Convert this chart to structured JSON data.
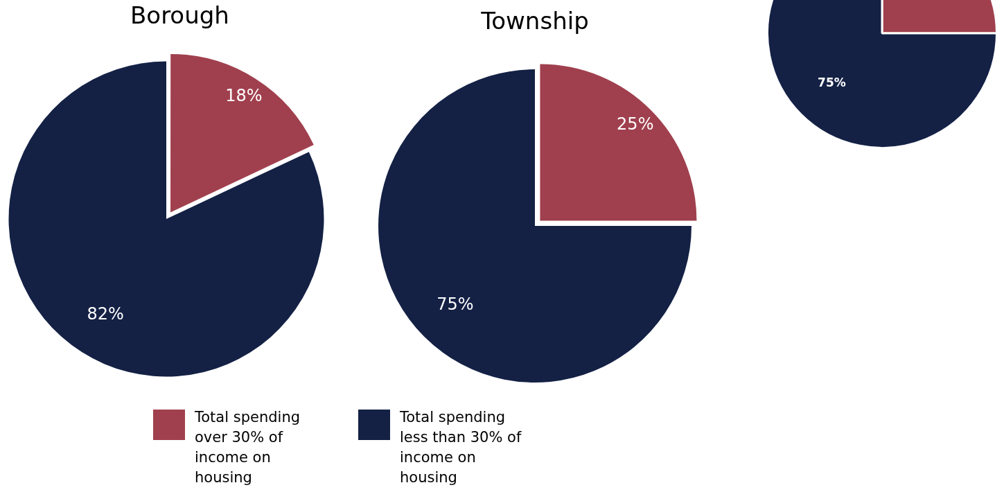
{
  "chart_data": [
    {
      "type": "pie",
      "title": "Borough",
      "categories": [
        "Total spending over 30% of income on housing",
        "Total spending less than 30% of income on housing"
      ],
      "values": [
        18,
        82
      ],
      "colors": [
        "#a0404e",
        "#142145"
      ],
      "value_labels": [
        "18%",
        "82%"
      ],
      "legend": "bottom"
    },
    {
      "type": "pie",
      "title": "Township",
      "categories": [
        null,
        null
      ],
      "values": [
        25,
        75
      ],
      "colors": [
        "#a0404e",
        "#142145"
      ],
      "value_labels": [
        "25%",
        "75%"
      ]
    },
    {
      "type": "pie",
      "categories": [
        null,
        null
      ],
      "values": [
        25,
        75
      ],
      "colors": [
        "#a0404e",
        "#142145"
      ],
      "value_labels": [
        null,
        "75%"
      ]
    }
  ]
}
